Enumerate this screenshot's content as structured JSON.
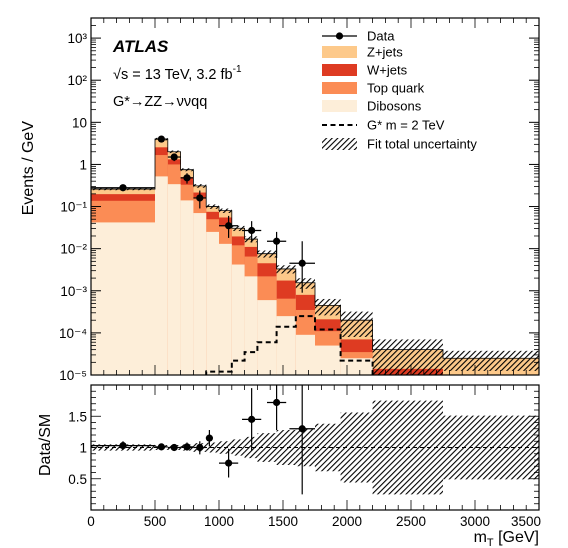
{
  "colors": {
    "zjets": "#fdc98a",
    "wjets": "#de3b22",
    "top": "#fb8c55",
    "dibosons": "#fdeed9",
    "data": "#000000",
    "signal": "#000000",
    "uncertainty": "#000000"
  },
  "labels": {
    "experiment": "ATLAS",
    "energy": "√s = 13 TeV, 3.2 fb",
    "energy_sup": "-1",
    "process": "G*→ZZ→ννqq"
  },
  "chart_data": [
    {
      "type": "bar",
      "ylabel": "Events / GeV",
      "yscale": "log",
      "xlim": [
        0,
        3500
      ],
      "ylim": [
        1e-05,
        3000
      ],
      "ytick_labels": [
        "10⁻⁵",
        "10⁻⁴",
        "10⁻³",
        "10⁻²",
        "10⁻¹",
        "1",
        "10",
        "10²",
        "10³"
      ],
      "bin_edges": [
        0,
        500,
        600,
        700,
        800,
        900,
        1000,
        1100,
        1200,
        1300,
        1450,
        1600,
        1750,
        1950,
        2200,
        2750,
        3500
      ],
      "stack": [
        {
          "name": "Dibosons",
          "color_key": "dibosons",
          "values": [
            0.042,
            0.52,
            0.34,
            0.14,
            0.07,
            0.025,
            0.013,
            0.0042,
            0.0022,
            0.0006,
            0.00025,
            9e-05,
            5e-05,
            2.5e-05,
            7e-06,
            5e-06
          ]
        },
        {
          "name": "Top quark",
          "color_key": "top",
          "values": [
            0.095,
            1.15,
            0.66,
            0.19,
            0.085,
            0.025,
            0.022,
            0.0078,
            0.0043,
            0.0016,
            0.0004,
            0.00026,
            6e-05,
            1e-05,
            2e-06,
            1e-06
          ]
        },
        {
          "name": "W+jets",
          "color_key": "wjets",
          "values": [
            0.06,
            0.88,
            0.32,
            0.17,
            0.06,
            0.025,
            0.02,
            0.0075,
            0.0045,
            0.0023,
            0.0011,
            0.00045,
            0.0001,
            3.5e-05,
            5e-06,
            3e-06
          ]
        },
        {
          "name": "Z+jets",
          "color_key": "zjets",
          "values": [
            0.063,
            1.45,
            0.68,
            0.25,
            0.095,
            0.025,
            0.025,
            0.011,
            0.0059,
            0.0031,
            0.00155,
            0.00075,
            0.00024,
            0.00013,
            2.6e-05,
            1.6e-05
          ]
        }
      ],
      "uncertainty_frac": [
        0.06,
        0.07,
        0.07,
        0.08,
        0.1,
        0.12,
        0.12,
        0.14,
        0.16,
        0.19,
        0.22,
        0.28,
        0.42,
        0.6,
        0.75,
        0.5
      ],
      "data": {
        "name": "Data",
        "x": [
          250,
          550,
          650,
          750,
          850,
          1075,
          1255,
          1450,
          1650
        ],
        "y": [
          0.28,
          4.0,
          1.5,
          0.48,
          0.16,
          0.035,
          0.027,
          0.015,
          0.0045
        ],
        "y_low": [
          0.25,
          3.5,
          1.2,
          0.35,
          0.09,
          0.018,
          0.014,
          0.006,
          0.0009
        ],
        "y_high": [
          0.31,
          4.6,
          1.8,
          0.62,
          0.24,
          0.06,
          0.045,
          0.025,
          0.015
        ],
        "x_err": [
          250,
          50,
          50,
          50,
          50,
          75,
          75,
          75,
          100
        ]
      },
      "signal": {
        "name": "G* m = 2 TeV",
        "values": [
          0,
          0,
          0,
          0,
          0,
          1.2e-05,
          1.2e-05,
          2.2e-05,
          3.5e-05,
          6e-05,
          0.00014,
          0.00025,
          0.00012,
          2.2e-05,
          8e-06,
          5e-06
        ]
      },
      "legend": [
        "Data",
        "Z+jets",
        "W+jets",
        "Top quark",
        "Dibosons",
        "G* m = 2 TeV",
        "Fit total uncertainty"
      ]
    },
    {
      "type": "scatter",
      "xlabel": "m",
      "xlabel_sub": "T",
      "xlabel_unit": " [GeV]",
      "ylabel": "Data/SM",
      "xlim": [
        0,
        3500
      ],
      "ylim": [
        0,
        2
      ],
      "xtick_labels": [
        "0",
        "500",
        "1000",
        "1500",
        "2000",
        "2500",
        "3000",
        "3500"
      ],
      "ytick_labels": [
        "0.5",
        "1",
        "1.5"
      ],
      "ratio_points": {
        "x": [
          250,
          550,
          650,
          750,
          850,
          925,
          1075,
          1255,
          1450,
          1650
        ],
        "y": [
          1.03,
          1.01,
          1.0,
          1.01,
          1.0,
          1.15,
          0.75,
          1.45,
          1.72,
          1.3
        ],
        "y_low": [
          0.96,
          0.97,
          0.95,
          0.95,
          0.89,
          1.02,
          0.52,
          0.95,
          1.28,
          0.25
        ],
        "y_high": [
          1.1,
          1.05,
          1.05,
          1.08,
          1.1,
          1.28,
          0.98,
          1.95,
          2.1,
          2.2
        ],
        "x_err": [
          250,
          50,
          50,
          50,
          50,
          25,
          75,
          75,
          75,
          100
        ]
      },
      "unc_band_low": [
        0.95,
        0.96,
        0.96,
        0.95,
        0.93,
        0.92,
        0.9,
        0.87,
        0.83,
        0.77,
        0.72,
        0.7,
        0.62,
        0.44,
        0.25,
        0.49
      ],
      "unc_band_high": [
        1.05,
        1.04,
        1.04,
        1.05,
        1.07,
        1.08,
        1.1,
        1.13,
        1.17,
        1.23,
        1.28,
        1.3,
        1.38,
        1.56,
        1.75,
        1.51
      ]
    }
  ]
}
